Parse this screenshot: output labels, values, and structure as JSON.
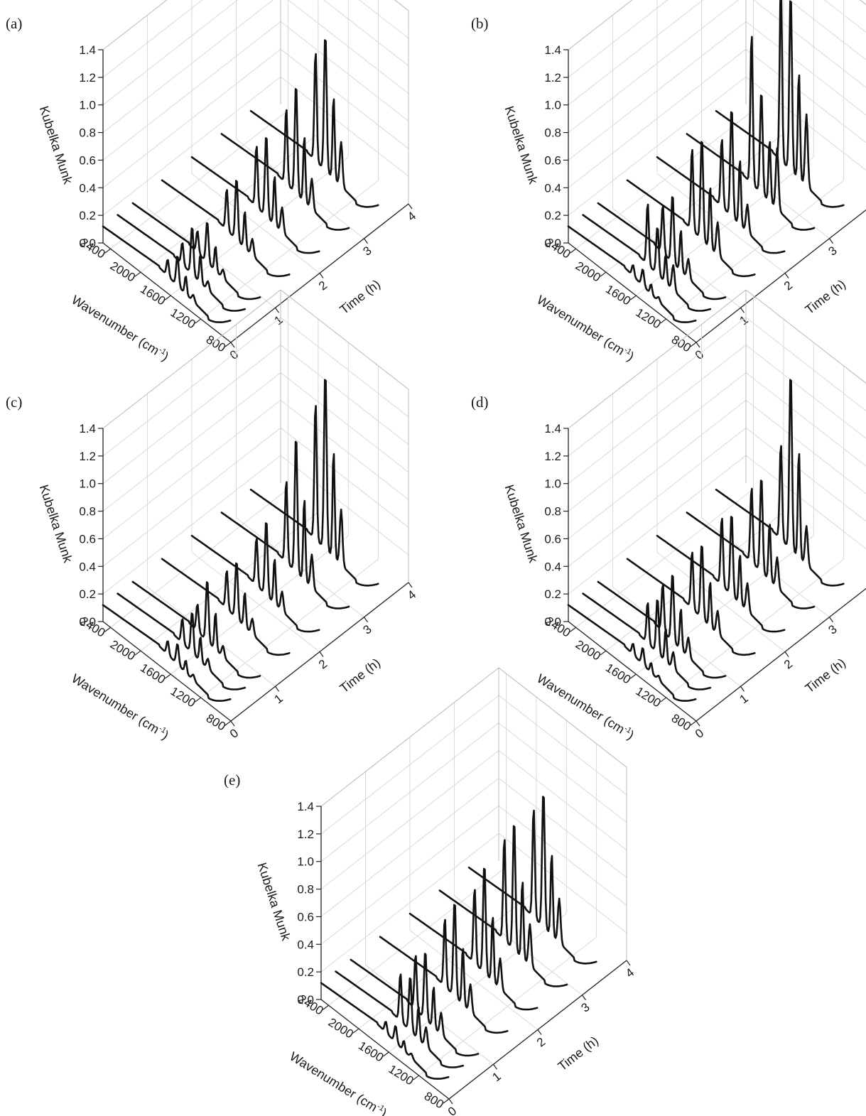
{
  "figure": {
    "panel_labels": [
      "(a)",
      "(b)",
      "(c)",
      "(d)",
      "(e)"
    ]
  },
  "axes": {
    "y_label": "Kubelka Munk",
    "x_label_main": "Wavenumber (cm",
    "x_label_sup": "-1",
    "x_label_close": ")",
    "t_label": "Time (h)",
    "y_ticks": [
      "0.0",
      "0.2",
      "0.4",
      "0.6",
      "0.8",
      "1.0",
      "1.2",
      "1.4"
    ],
    "x_ticks": [
      "2400",
      "2000",
      "1600",
      "1200",
      "800"
    ],
    "t_ticks": [
      "0",
      "1",
      "2",
      "3",
      "4"
    ]
  },
  "chart_data": [
    {
      "type": "line",
      "panel": "(a)",
      "xlabel": "Wavenumber (cm-1)",
      "ylabel": "Kubelka Munk",
      "zlabel": "Time (h)",
      "xlim": [
        2500,
        800
      ],
      "ylim": [
        0,
        1.4
      ],
      "zlim": [
        0,
        4
      ],
      "grid": true,
      "times_h": [
        0,
        0.33,
        0.67,
        1.33,
        2,
        2.67,
        3.33
      ],
      "peaks": [
        [
          0.12,
          0.22
        ],
        [
          0.16,
          0.35
        ],
        [
          0.16,
          0.3
        ],
        [
          0.3,
          0.45
        ],
        [
          0.45,
          0.6
        ],
        [
          0.55,
          0.8
        ],
        [
          0.8,
          1.0
        ]
      ]
    },
    {
      "type": "line",
      "panel": "(b)",
      "xlabel": "Wavenumber (cm-1)",
      "ylabel": "Kubelka Munk",
      "zlabel": "Time (h)",
      "xlim": [
        2500,
        800
      ],
      "ylim": [
        0,
        1.4
      ],
      "zlim": [
        0,
        4
      ],
      "grid": true,
      "times_h": [
        0,
        0.33,
        0.67,
        1.33,
        2,
        2.67,
        3.33
      ],
      "peaks": [
        [
          0.08,
          0.12
        ],
        [
          0.45,
          0.35
        ],
        [
          0.35,
          0.5
        ],
        [
          0.6,
          0.75
        ],
        [
          0.5,
          0.8
        ],
        [
          1.1,
          0.75
        ],
        [
          1.3,
          1.3
        ]
      ]
    },
    {
      "type": "line",
      "panel": "(c)",
      "xlabel": "Wavenumber (cm-1)",
      "ylabel": "Kubelka Munk",
      "zlabel": "Time (h)",
      "xlim": [
        2500,
        800
      ],
      "ylim": [
        0,
        1.4
      ],
      "zlim": [
        0,
        4
      ],
      "grid": true,
      "times_h": [
        0,
        0.33,
        0.67,
        1.33,
        2,
        2.67,
        3.33
      ],
      "peaks": [
        [
          0.1,
          0.15
        ],
        [
          0.18,
          0.3
        ],
        [
          0.2,
          0.45
        ],
        [
          0.28,
          0.42
        ],
        [
          0.35,
          0.55
        ],
        [
          0.6,
          1.0
        ],
        [
          1.0,
          1.3
        ]
      ]
    },
    {
      "type": "line",
      "panel": "(d)",
      "xlabel": "Wavenumber (cm-1)",
      "ylabel": "Kubelka Munk",
      "zlabel": "Time (h)",
      "xlim": [
        2500,
        800
      ],
      "ylim": [
        0,
        1.4
      ],
      "zlim": [
        0,
        4
      ],
      "grid": true,
      "times_h": [
        0,
        0.33,
        0.67,
        1.33,
        2,
        2.67,
        3.33
      ],
      "peaks": [
        [
          0.08,
          0.12
        ],
        [
          0.3,
          0.4
        ],
        [
          0.35,
          0.5
        ],
        [
          0.42,
          0.55
        ],
        [
          0.5,
          0.6
        ],
        [
          0.55,
          0.7
        ],
        [
          0.7,
          1.3
        ]
      ]
    },
    {
      "type": "line",
      "panel": "(e)",
      "xlabel": "Wavenumber (cm-1)",
      "ylabel": "Kubelka Munk",
      "zlabel": "Time (h)",
      "xlim": [
        2500,
        800
      ],
      "ylim": [
        0,
        1.4
      ],
      "zlim": [
        0,
        4
      ],
      "grid": true,
      "times_h": [
        0,
        0.33,
        0.67,
        1.33,
        2,
        2.67,
        3.33
      ],
      "peaks": [
        [
          0.08,
          0.12
        ],
        [
          0.35,
          0.4
        ],
        [
          0.4,
          0.5
        ],
        [
          0.5,
          0.7
        ],
        [
          0.55,
          0.8
        ],
        [
          0.75,
          0.95
        ],
        [
          0.8,
          1.0
        ]
      ]
    }
  ]
}
